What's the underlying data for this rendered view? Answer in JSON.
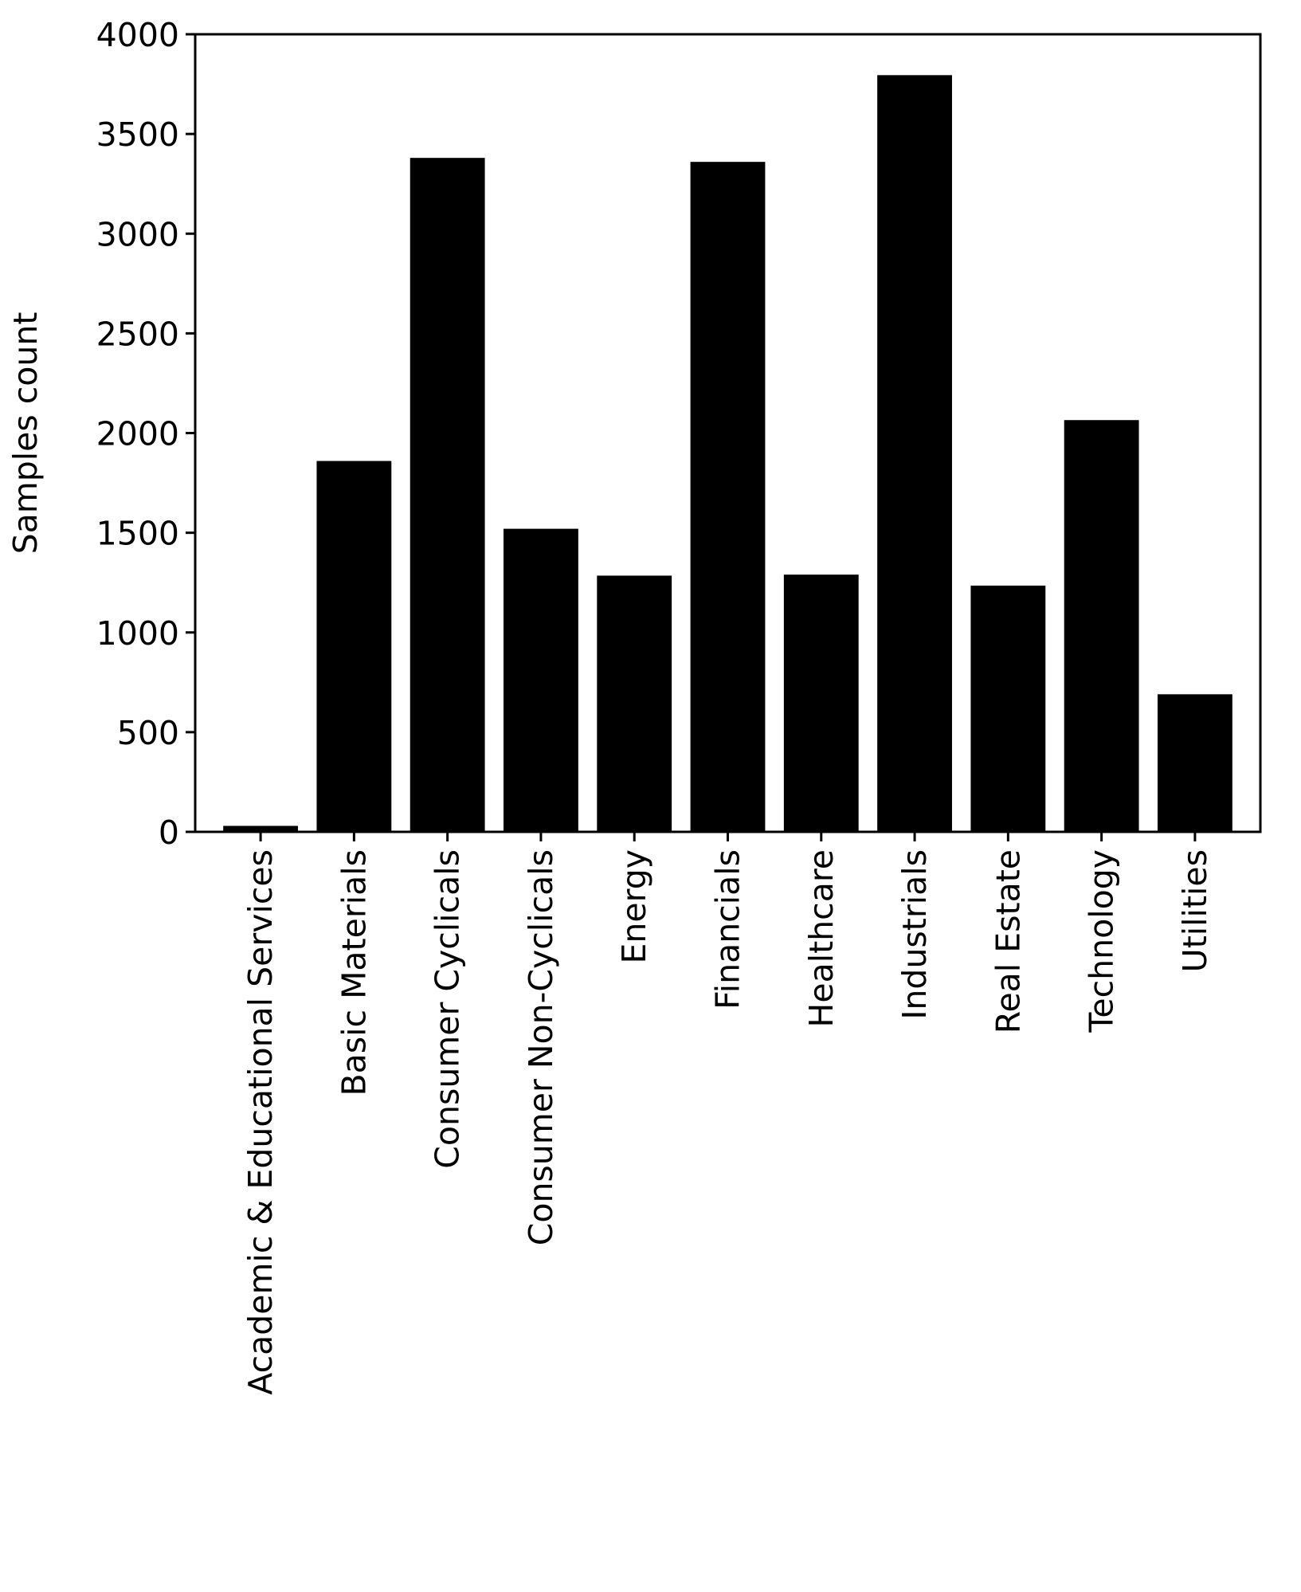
{
  "chart_data": {
    "type": "bar",
    "title": "",
    "xlabel": "",
    "ylabel": "Samples count",
    "ylim": [
      0,
      4000
    ],
    "yticks": [
      0,
      500,
      1000,
      1500,
      2000,
      2500,
      3000,
      3500,
      4000
    ],
    "grid": false,
    "bar_color": "#000000",
    "categories": [
      "Academic & Educational Services",
      "Basic Materials",
      "Consumer Cyclicals",
      "Consumer Non-Cyclicals",
      "Energy",
      "Financials",
      "Healthcare",
      "Industrials",
      "Real Estate",
      "Technology",
      "Utilities"
    ],
    "values": [
      30,
      1860,
      3380,
      1520,
      1285,
      3360,
      1290,
      3795,
      1235,
      2065,
      690
    ]
  }
}
